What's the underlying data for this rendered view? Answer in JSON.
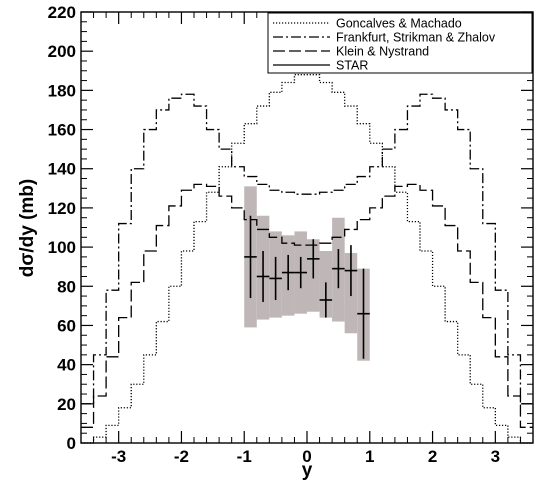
{
  "chart_data": {
    "type": "line",
    "title": "",
    "xlabel": "y",
    "ylabel": "dσ/dy (mb)",
    "xlim": [
      -3.6,
      3.6
    ],
    "ylim": [
      0,
      220
    ],
    "x_ticks": [
      -3,
      -2,
      -1,
      0,
      1,
      2,
      3
    ],
    "x_tick_labels": [
      "-3",
      "-2",
      "-1",
      "0",
      "1",
      "2",
      "3"
    ],
    "y_ticks": [
      0,
      20,
      40,
      60,
      80,
      100,
      120,
      140,
      160,
      180,
      200,
      220
    ],
    "y_tick_labels": [
      "0",
      "20",
      "40",
      "60",
      "80",
      "100",
      "120",
      "140",
      "160",
      "180",
      "200",
      "220"
    ],
    "grid": false,
    "legend_position": "top-right",
    "series": [
      {
        "name": "Goncalves & Machado",
        "style": "dotted",
        "color": "#000000",
        "x": [
          -3.5,
          -3.3,
          -3.1,
          -2.9,
          -2.7,
          -2.5,
          -2.3,
          -2.1,
          -1.9,
          -1.7,
          -1.5,
          -1.3,
          -1.1,
          -0.9,
          -0.7,
          -0.5,
          -0.3,
          -0.1,
          0.1,
          0.3,
          0.5,
          0.7,
          0.9,
          1.1,
          1.3,
          1.5,
          1.7,
          1.9,
          2.1,
          2.3,
          2.5,
          2.7,
          2.9,
          3.1,
          3.3,
          3.5
        ],
        "y": [
          0,
          3,
          9,
          18,
          30,
          45,
          62,
          80,
          98,
          113,
          128,
          141,
          153,
          163,
          172,
          179,
          184,
          188,
          188,
          184,
          179,
          172,
          163,
          153,
          141,
          128,
          113,
          98,
          80,
          62,
          45,
          30,
          18,
          9,
          3,
          0
        ]
      },
      {
        "name": "Frankfurt, Strikman & Zhalov",
        "style": "dash-dot",
        "color": "#000000",
        "x": [
          -3.5,
          -3.3,
          -3.1,
          -2.9,
          -2.7,
          -2.5,
          -2.3,
          -2.1,
          -1.9,
          -1.7,
          -1.5,
          -1.3,
          -1.1,
          -0.9,
          -0.7,
          -0.5,
          -0.3,
          -0.1,
          0.1,
          0.3,
          0.5,
          0.7,
          0.9,
          1.1,
          1.3,
          1.5,
          1.7,
          1.9,
          2.1,
          2.3,
          2.5,
          2.7,
          2.9,
          3.1,
          3.3,
          3.5
        ],
        "y": [
          20,
          45,
          78,
          112,
          140,
          160,
          170,
          176,
          178,
          172,
          160,
          150,
          141,
          136,
          132,
          129,
          128,
          127,
          127,
          128,
          129,
          132,
          136,
          141,
          150,
          160,
          172,
          178,
          176,
          170,
          160,
          140,
          112,
          78,
          45,
          20
        ]
      },
      {
        "name": "Klein & Nystrand",
        "style": "long-dash",
        "color": "#000000",
        "x": [
          -3.5,
          -3.3,
          -3.1,
          -2.9,
          -2.7,
          -2.5,
          -2.3,
          -2.1,
          -1.9,
          -1.7,
          -1.5,
          -1.3,
          -1.1,
          -0.9,
          -0.7,
          -0.5,
          -0.3,
          -0.1,
          0.1,
          0.3,
          0.5,
          0.7,
          0.9,
          1.1,
          1.3,
          1.5,
          1.7,
          1.9,
          2.1,
          2.3,
          2.5,
          2.7,
          2.9,
          3.1,
          3.3,
          3.5
        ],
        "y": [
          8,
          24,
          44,
          64,
          82,
          98,
          111,
          121,
          129,
          132,
          131,
          126,
          120,
          114,
          109,
          105,
          102,
          101,
          101,
          102,
          105,
          109,
          114,
          120,
          126,
          131,
          132,
          129,
          121,
          111,
          98,
          82,
          64,
          44,
          24,
          8
        ]
      }
    ],
    "data_series": {
      "name": "STAR",
      "style": "solid",
      "color": "#000000",
      "x": [
        -0.9,
        -0.7,
        -0.5,
        -0.3,
        -0.1,
        0.1,
        0.3,
        0.5,
        0.7,
        0.9
      ],
      "y": [
        95,
        85,
        84,
        87,
        87,
        94,
        73,
        89,
        88,
        66
      ],
      "y_err": [
        21,
        13,
        11,
        9,
        8,
        10,
        9,
        10,
        13,
        23
      ],
      "x_err": 0.1,
      "sys_low": [
        59,
        63,
        64,
        65,
        66,
        67,
        64,
        62,
        56,
        42
      ],
      "sys_high": [
        131,
        116,
        108,
        106,
        108,
        104,
        98,
        115,
        97,
        89
      ],
      "band_color": "#bfb7b7"
    }
  }
}
